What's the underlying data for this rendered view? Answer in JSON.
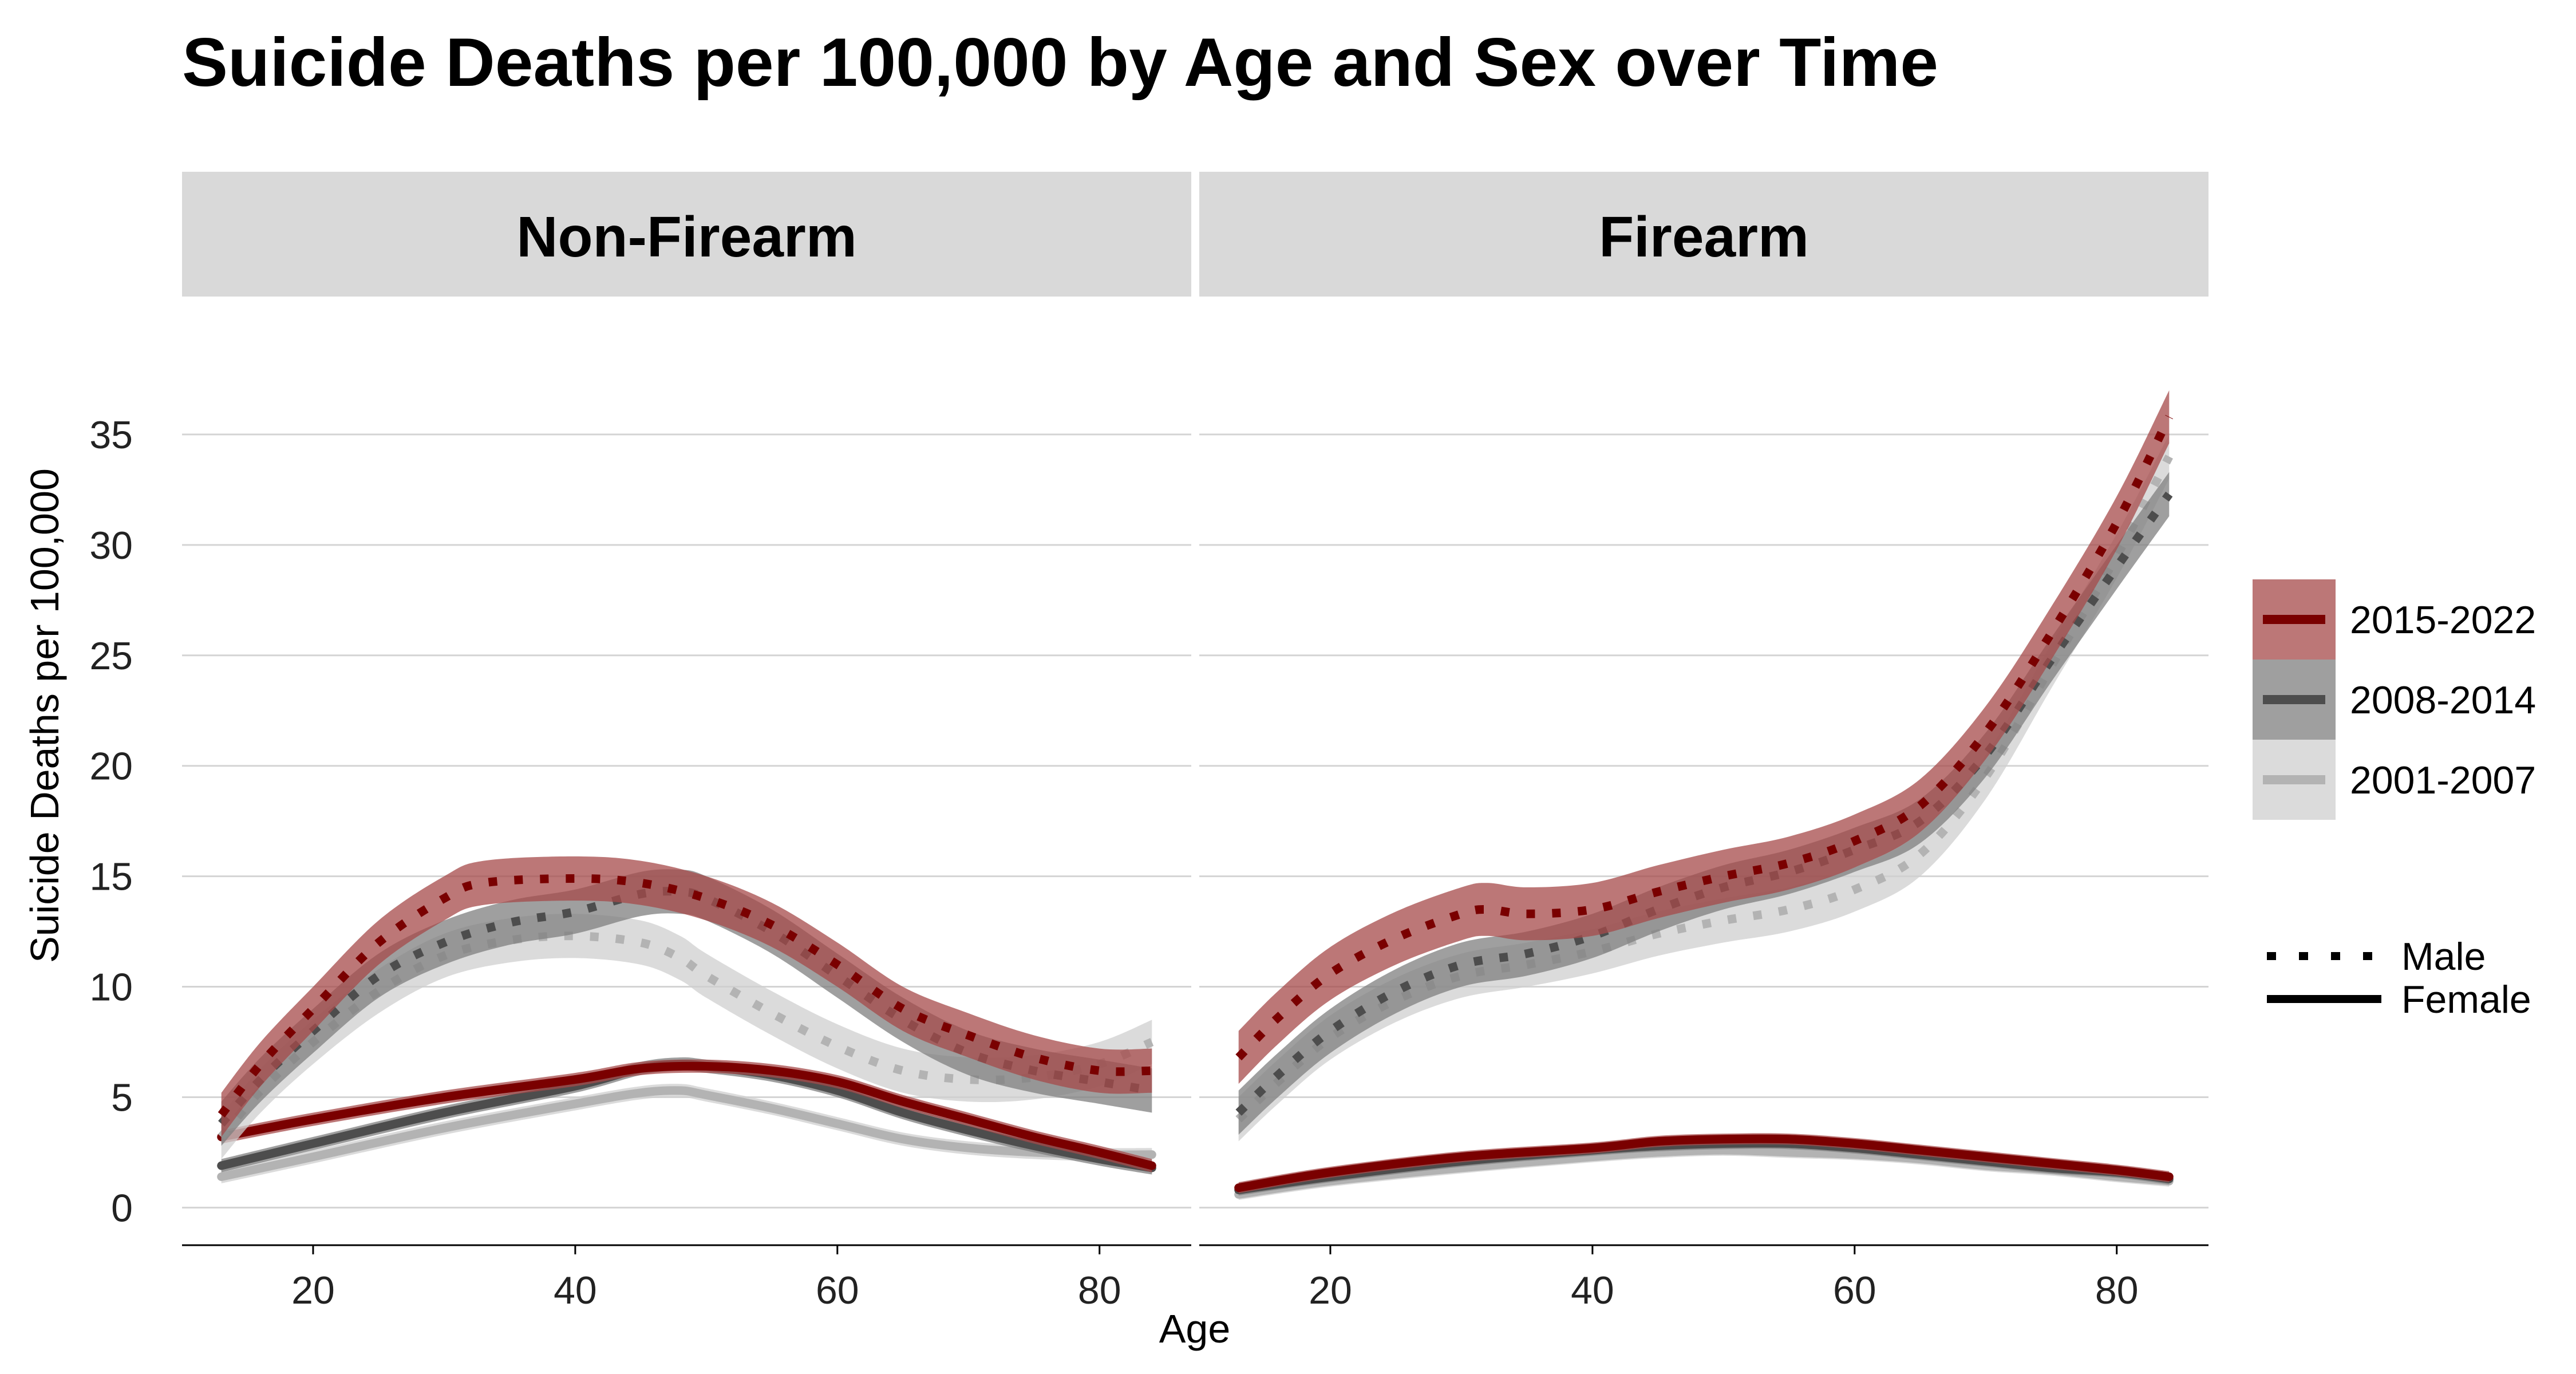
{
  "chart_data": {
    "type": "line",
    "title": "Suicide Deaths per 100,000 by Age and Sex over Time",
    "xlabel": "Age",
    "ylabel": "Suicide Deaths per 100,000",
    "xlim": [
      10,
      87
    ],
    "ylim": [
      -1.7,
      40
    ],
    "x_ticks": [
      20,
      40,
      60,
      80
    ],
    "y_ticks": [
      0,
      5,
      10,
      15,
      20,
      25,
      30,
      35
    ],
    "grid": "horizontal",
    "legend_position": "right",
    "colors": {
      "2015-2022": {
        "line": "#7a0000",
        "band": "#a54a4a"
      },
      "2008-2014": {
        "line": "#4d4d4d",
        "band": "#7f7f7f"
      },
      "2001-2007": {
        "line": "#b3b3b3",
        "band": "#cfcfcf"
      }
    },
    "legend_period": [
      "2015-2022",
      "2008-2014",
      "2001-2007"
    ],
    "legend_sex": [
      "Male",
      "Female"
    ],
    "panels": [
      {
        "name": "Non-Firearm",
        "series": [
          {
            "period": "2015-2022",
            "sex": "Male",
            "band": 1.0,
            "points": [
              [
                13,
                4.2
              ],
              [
                16,
                6.5
              ],
              [
                20,
                9.0
              ],
              [
                25,
                12.0
              ],
              [
                30,
                14.0
              ],
              [
                33,
                14.7
              ],
              [
                40,
                14.9
              ],
              [
                45,
                14.7
              ],
              [
                50,
                14.0
              ],
              [
                55,
                12.8
              ],
              [
                60,
                11.0
              ],
              [
                65,
                9.0
              ],
              [
                70,
                7.8
              ],
              [
                75,
                6.8
              ],
              [
                80,
                6.2
              ],
              [
                84,
                6.2
              ]
            ]
          },
          {
            "period": "2008-2014",
            "sex": "Male",
            "band": 1.0,
            "points": [
              [
                13,
                3.8
              ],
              [
                16,
                5.8
              ],
              [
                20,
                8.0
              ],
              [
                25,
                10.5
              ],
              [
                30,
                12.0
              ],
              [
                35,
                12.9
              ],
              [
                40,
                13.4
              ],
              [
                45,
                14.2
              ],
              [
                48,
                14.3
              ],
              [
                50,
                14.0
              ],
              [
                55,
                12.5
              ],
              [
                60,
                10.5
              ],
              [
                65,
                8.5
              ],
              [
                70,
                7.0
              ],
              [
                75,
                6.2
              ],
              [
                80,
                5.7
              ],
              [
                84,
                5.3
              ]
            ]
          },
          {
            "period": "2001-2007",
            "sex": "Male",
            "band": 1.0,
            "points": [
              [
                13,
                3.2
              ],
              [
                16,
                5.3
              ],
              [
                20,
                7.5
              ],
              [
                25,
                9.8
              ],
              [
                30,
                11.4
              ],
              [
                35,
                12.1
              ],
              [
                40,
                12.3
              ],
              [
                45,
                12.0
              ],
              [
                48,
                11.3
              ],
              [
                50,
                10.5
              ],
              [
                55,
                8.8
              ],
              [
                60,
                7.3
              ],
              [
                65,
                6.2
              ],
              [
                70,
                5.8
              ],
              [
                75,
                5.9
              ],
              [
                80,
                6.5
              ],
              [
                84,
                7.5
              ]
            ]
          },
          {
            "period": "2015-2022",
            "sex": "Female",
            "band": 0.3,
            "points": [
              [
                13,
                3.2
              ],
              [
                20,
                4.0
              ],
              [
                30,
                5.0
              ],
              [
                40,
                5.8
              ],
              [
                45,
                6.3
              ],
              [
                50,
                6.4
              ],
              [
                55,
                6.2
              ],
              [
                60,
                5.7
              ],
              [
                65,
                4.8
              ],
              [
                70,
                4.0
              ],
              [
                75,
                3.2
              ],
              [
                80,
                2.5
              ],
              [
                84,
                1.9
              ]
            ]
          },
          {
            "period": "2008-2014",
            "sex": "Female",
            "band": 0.3,
            "points": [
              [
                13,
                1.9
              ],
              [
                20,
                2.9
              ],
              [
                30,
                4.3
              ],
              [
                40,
                5.5
              ],
              [
                45,
                6.3
              ],
              [
                48,
                6.5
              ],
              [
                50,
                6.4
              ],
              [
                55,
                6.0
              ],
              [
                60,
                5.3
              ],
              [
                65,
                4.3
              ],
              [
                70,
                3.5
              ],
              [
                75,
                2.8
              ],
              [
                80,
                2.2
              ],
              [
                84,
                1.8
              ]
            ]
          },
          {
            "period": "2001-2007",
            "sex": "Female",
            "band": 0.3,
            "points": [
              [
                13,
                1.4
              ],
              [
                20,
                2.3
              ],
              [
                30,
                3.6
              ],
              [
                40,
                4.7
              ],
              [
                45,
                5.2
              ],
              [
                48,
                5.3
              ],
              [
                50,
                5.1
              ],
              [
                55,
                4.5
              ],
              [
                60,
                3.8
              ],
              [
                65,
                3.1
              ],
              [
                70,
                2.7
              ],
              [
                75,
                2.5
              ],
              [
                80,
                2.4
              ],
              [
                84,
                2.4
              ]
            ]
          }
        ]
      },
      {
        "name": "Firearm",
        "series": [
          {
            "period": "2015-2022",
            "sex": "Male",
            "band": 1.2,
            "points": [
              [
                13,
                6.8
              ],
              [
                16,
                8.6
              ],
              [
                20,
                10.6
              ],
              [
                25,
                12.2
              ],
              [
                30,
                13.3
              ],
              [
                32,
                13.5
              ],
              [
                35,
                13.3
              ],
              [
                40,
                13.5
              ],
              [
                45,
                14.3
              ],
              [
                50,
                15.0
              ],
              [
                55,
                15.6
              ],
              [
                60,
                16.6
              ],
              [
                65,
                18.2
              ],
              [
                70,
                21.5
              ],
              [
                75,
                26.0
              ],
              [
                80,
                31.0
              ],
              [
                84,
                35.8
              ]
            ]
          },
          {
            "period": "2008-2014",
            "sex": "Male",
            "band": 1.0,
            "points": [
              [
                13,
                4.3
              ],
              [
                16,
                6.0
              ],
              [
                20,
                8.0
              ],
              [
                25,
                9.8
              ],
              [
                30,
                11.0
              ],
              [
                35,
                11.5
              ],
              [
                40,
                12.3
              ],
              [
                45,
                13.5
              ],
              [
                50,
                14.5
              ],
              [
                55,
                15.2
              ],
              [
                60,
                16.2
              ],
              [
                65,
                17.5
              ],
              [
                70,
                20.5
              ],
              [
                75,
                24.8
              ],
              [
                80,
                29.0
              ],
              [
                84,
                32.3
              ]
            ]
          },
          {
            "period": "2001-2007",
            "sex": "Male",
            "band": 1.0,
            "points": [
              [
                13,
                4.0
              ],
              [
                16,
                5.7
              ],
              [
                20,
                7.7
              ],
              [
                25,
                9.4
              ],
              [
                30,
                10.5
              ],
              [
                35,
                11.0
              ],
              [
                40,
                11.6
              ],
              [
                45,
                12.4
              ],
              [
                50,
                13.0
              ],
              [
                55,
                13.5
              ],
              [
                60,
                14.4
              ],
              [
                65,
                16.0
              ],
              [
                70,
                19.5
              ],
              [
                75,
                24.5
              ],
              [
                80,
                29.5
              ],
              [
                84,
                34.0
              ]
            ]
          },
          {
            "period": "2015-2022",
            "sex": "Female",
            "band": 0.25,
            "points": [
              [
                13,
                0.9
              ],
              [
                20,
                1.6
              ],
              [
                30,
                2.3
              ],
              [
                40,
                2.7
              ],
              [
                45,
                3.0
              ],
              [
                50,
                3.1
              ],
              [
                55,
                3.1
              ],
              [
                60,
                2.9
              ],
              [
                65,
                2.6
              ],
              [
                70,
                2.3
              ],
              [
                75,
                2.0
              ],
              [
                80,
                1.7
              ],
              [
                84,
                1.4
              ]
            ]
          },
          {
            "period": "2008-2014",
            "sex": "Female",
            "band": 0.25,
            "points": [
              [
                13,
                0.8
              ],
              [
                20,
                1.4
              ],
              [
                30,
                2.1
              ],
              [
                40,
                2.6
              ],
              [
                45,
                2.8
              ],
              [
                50,
                2.9
              ],
              [
                55,
                2.9
              ],
              [
                60,
                2.7
              ],
              [
                65,
                2.4
              ],
              [
                70,
                2.1
              ],
              [
                75,
                1.8
              ],
              [
                80,
                1.6
              ],
              [
                84,
                1.3
              ]
            ]
          },
          {
            "period": "2001-2007",
            "sex": "Female",
            "band": 0.25,
            "points": [
              [
                13,
                0.6
              ],
              [
                20,
                1.2
              ],
              [
                30,
                1.8
              ],
              [
                40,
                2.3
              ],
              [
                45,
                2.5
              ],
              [
                50,
                2.6
              ],
              [
                55,
                2.5
              ],
              [
                60,
                2.4
              ],
              [
                65,
                2.2
              ],
              [
                70,
                1.9
              ],
              [
                75,
                1.7
              ],
              [
                80,
                1.4
              ],
              [
                84,
                1.2
              ]
            ]
          }
        ]
      }
    ]
  }
}
